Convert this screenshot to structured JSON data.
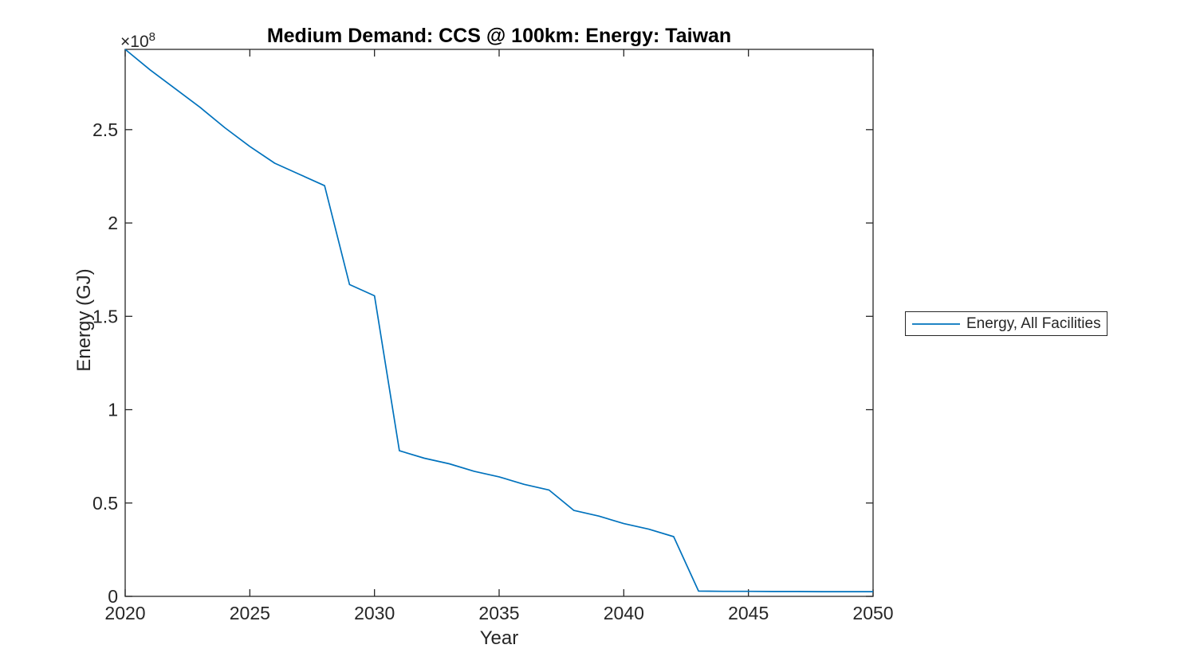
{
  "figure": {
    "background": "#ffffff"
  },
  "colors": {
    "line": "#0072BD",
    "axis": "#262626",
    "tick_text": "#262626",
    "title_text": "#000000",
    "background": "#ffffff"
  },
  "chart_data": {
    "type": "line",
    "title": "Medium Demand: CCS @ 100km: Energy: Taiwan",
    "xlabel": "Year",
    "ylabel": "Energy (GJ)",
    "y_exponent_base": "×10",
    "y_exponent_power": "8",
    "y_unit_multiplier": 100000000,
    "grid": false,
    "box": true,
    "xlim": [
      2020,
      2050
    ],
    "ylim_e8": [
      0,
      2.93
    ],
    "xticks": [
      2020,
      2025,
      2030,
      2035,
      2040,
      2045,
      2050
    ],
    "yticks_e8": [
      0,
      0.5,
      1,
      1.5,
      2,
      2.5
    ],
    "x": [
      2020,
      2021,
      2022,
      2023,
      2024,
      2025,
      2026,
      2027,
      2028,
      2029,
      2030,
      2031,
      2032,
      2033,
      2034,
      2035,
      2036,
      2037,
      2038,
      2039,
      2040,
      2041,
      2042,
      2043,
      2044,
      2045,
      2046,
      2047,
      2048,
      2049,
      2050
    ],
    "series": [
      {
        "name": "Energy, All Facilities",
        "color": "#0072BD",
        "values_e8": [
          2.93,
          2.82,
          2.72,
          2.62,
          2.51,
          2.41,
          2.32,
          2.26,
          2.2,
          1.67,
          1.61,
          0.78,
          0.74,
          0.71,
          0.67,
          0.64,
          0.6,
          0.57,
          0.46,
          0.43,
          0.39,
          0.36,
          0.32,
          0.028,
          0.027,
          0.027,
          0.026,
          0.026,
          0.025,
          0.025,
          0.025
        ]
      }
    ],
    "legend": {
      "position": "outside-right",
      "entries": [
        "Energy, All Facilities"
      ]
    }
  }
}
